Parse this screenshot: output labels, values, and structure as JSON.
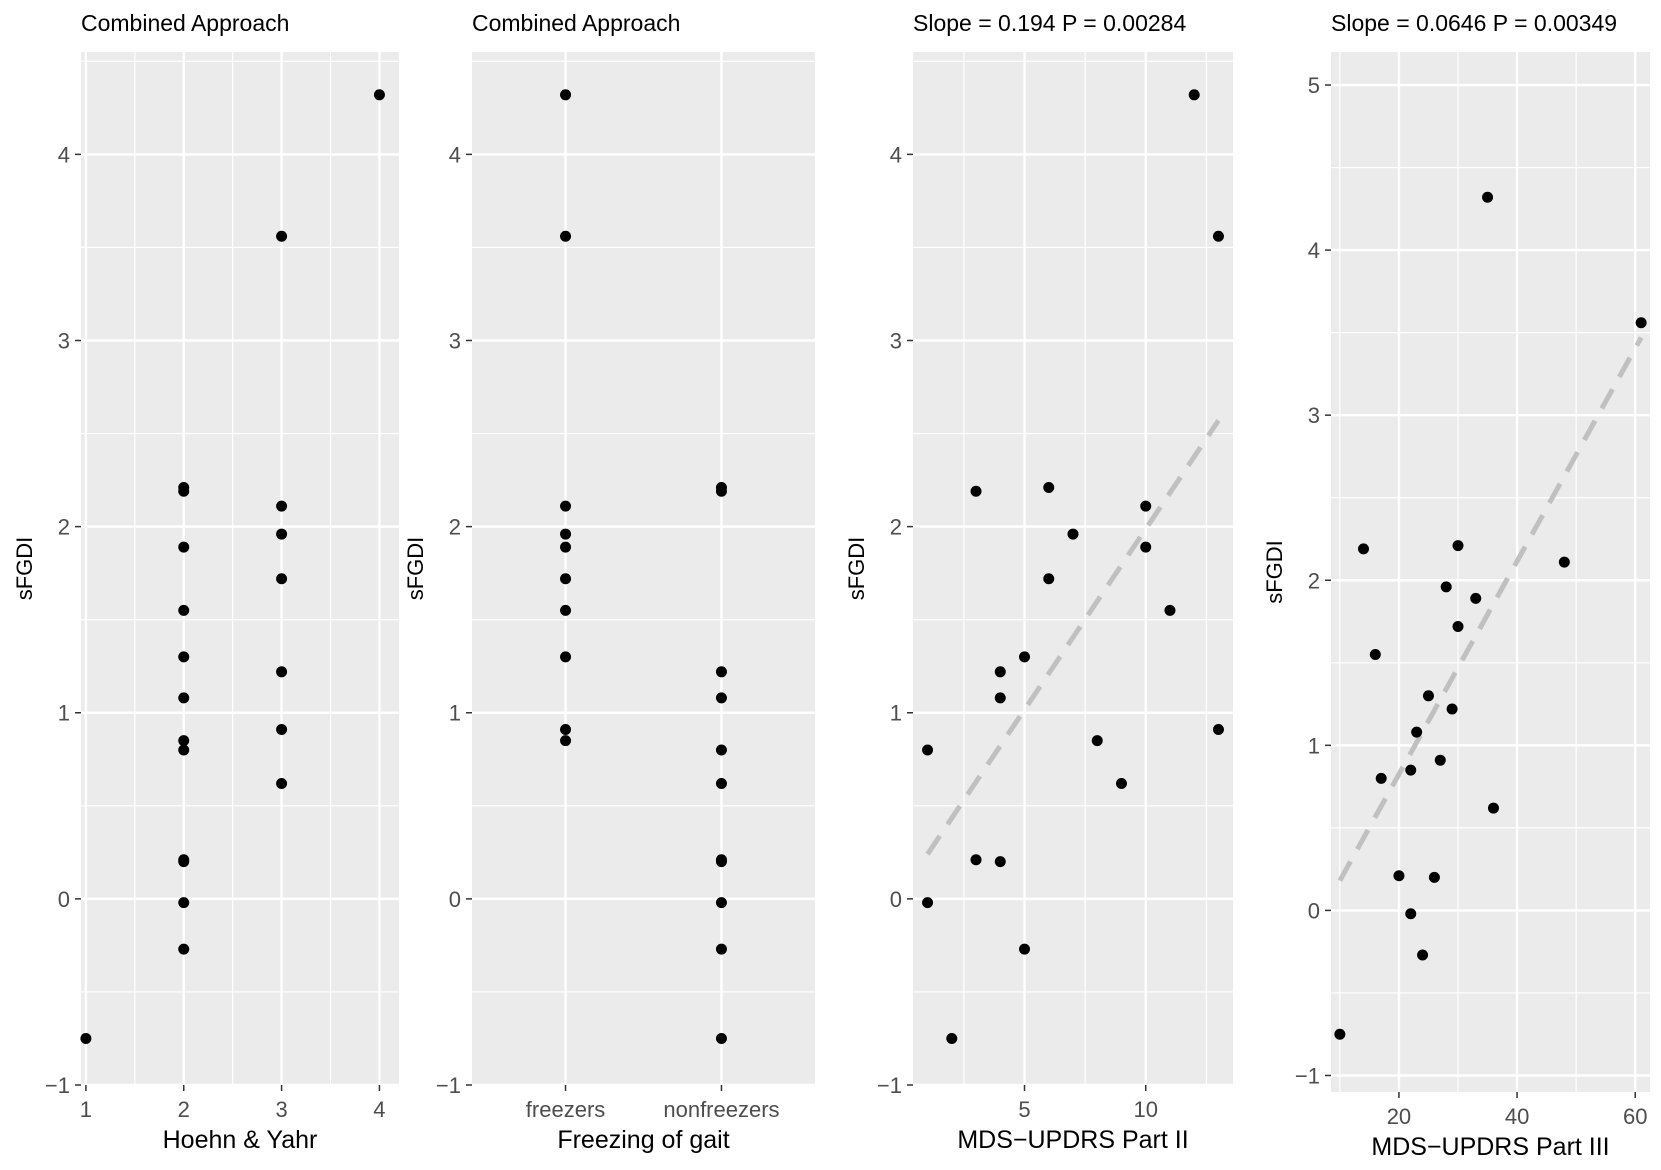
{
  "chart_data": [
    {
      "type": "scatter",
      "title": "Combined Approach",
      "xlabel": "Hoehn & Yahr",
      "ylabel": "sFGDI",
      "xlim": [
        0.95,
        4.2
      ],
      "ylim": [
        -1.0,
        4.55
      ],
      "xticks": [
        1,
        2,
        3,
        4
      ],
      "xtick_labels": [
        "1",
        "2",
        "3",
        "4"
      ],
      "yticks": [
        -1,
        0,
        1,
        2,
        3,
        4
      ],
      "ytick_labels": [
        "−1",
        "0",
        "1",
        "2",
        "3",
        "4"
      ],
      "x": [
        1,
        2,
        2,
        2,
        2,
        2,
        2,
        2,
        2,
        2,
        2,
        2,
        2,
        3,
        3,
        3,
        3,
        3,
        3,
        3,
        4
      ],
      "y": [
        -0.75,
        2.21,
        2.19,
        1.89,
        1.55,
        1.3,
        1.08,
        0.85,
        0.8,
        0.21,
        0.2,
        -0.02,
        -0.27,
        3.56,
        2.11,
        1.96,
        1.72,
        1.22,
        0.91,
        0.62,
        4.32
      ]
    },
    {
      "type": "scatter",
      "title": "Combined Approach",
      "xlabel": "Freezing of gait",
      "ylabel": "sFGDI",
      "categories": [
        "freezers",
        "nonfreezers"
      ],
      "xlim": [
        0.4,
        2.6
      ],
      "ylim": [
        -1.0,
        4.55
      ],
      "yticks": [
        -1,
        0,
        1,
        2,
        3,
        4
      ],
      "ytick_labels": [
        "−1",
        "0",
        "1",
        "2",
        "3",
        "4"
      ],
      "series": [
        {
          "name": "freezers",
          "values": [
            4.32,
            3.56,
            2.11,
            1.96,
            1.89,
            1.72,
            1.55,
            1.3,
            0.91,
            0.85
          ]
        },
        {
          "name": "nonfreezers",
          "values": [
            2.21,
            2.19,
            1.22,
            1.08,
            0.8,
            0.62,
            0.21,
            0.2,
            -0.02,
            -0.27,
            -0.75
          ]
        }
      ]
    },
    {
      "type": "scatter",
      "title": "Slope = 0.194  P = 0.00284",
      "xlabel": "MDS−UPDRS Part II",
      "ylabel": "sFGDI",
      "xlim": [
        0.4,
        13.6
      ],
      "ylim": [
        -1.0,
        4.55
      ],
      "xticks": [
        5,
        10
      ],
      "xtick_labels": [
        "5",
        "10"
      ],
      "yticks": [
        -1,
        0,
        1,
        2,
        3,
        4
      ],
      "ytick_labels": [
        "−1",
        "0",
        "1",
        "2",
        "3",
        "4"
      ],
      "x": [
        1,
        1,
        2,
        3,
        3,
        4,
        4,
        4,
        5,
        5,
        6,
        6,
        7,
        8,
        9,
        10,
        10,
        11,
        12,
        13,
        13
      ],
      "y": [
        0.8,
        -0.02,
        -0.75,
        2.19,
        0.21,
        1.22,
        1.08,
        0.2,
        1.3,
        -0.27,
        2.21,
        1.72,
        1.96,
        0.85,
        0.62,
        2.11,
        1.89,
        1.55,
        4.32,
        3.56,
        0.91
      ],
      "fit_line": {
        "x": [
          1,
          13
        ],
        "y": [
          0.24,
          2.57
        ],
        "style": "dashed",
        "color": "#c0c0c0"
      }
    },
    {
      "type": "scatter",
      "title": "Slope = 0.0646  P = 0.00349",
      "xlabel": "MDS−UPDRS Part III",
      "ylabel": "sFGDI",
      "xlim": [
        8.5,
        62.5
      ],
      "ylim": [
        -1.1,
        5.2
      ],
      "xticks": [
        20,
        40,
        60
      ],
      "xtick_labels": [
        "20",
        "40",
        "60"
      ],
      "yticks": [
        -1,
        0,
        1,
        2,
        3,
        4,
        5
      ],
      "ytick_labels": [
        "−1",
        "0",
        "1",
        "2",
        "3",
        "4",
        "5"
      ],
      "x": [
        10,
        14,
        16,
        17,
        20,
        22,
        22,
        23,
        24,
        25,
        26,
        27,
        28,
        29,
        30,
        30,
        33,
        35,
        36,
        48,
        61
      ],
      "y": [
        -0.75,
        2.19,
        1.55,
        0.8,
        0.21,
        -0.02,
        0.85,
        1.08,
        -0.27,
        1.3,
        0.2,
        0.91,
        1.96,
        1.22,
        2.21,
        1.72,
        1.89,
        4.32,
        0.62,
        2.11,
        3.56
      ],
      "fit_line": {
        "x": [
          10,
          61
        ],
        "y": [
          0.18,
          3.47
        ],
        "style": "dashed",
        "color": "#c0c0c0"
      }
    }
  ],
  "colors": {
    "panel_bg": "#ebebeb",
    "grid": "#ffffff",
    "point": "#000000",
    "tick_text": "#4d4d4d",
    "fit_line": "#c0c0c0"
  }
}
